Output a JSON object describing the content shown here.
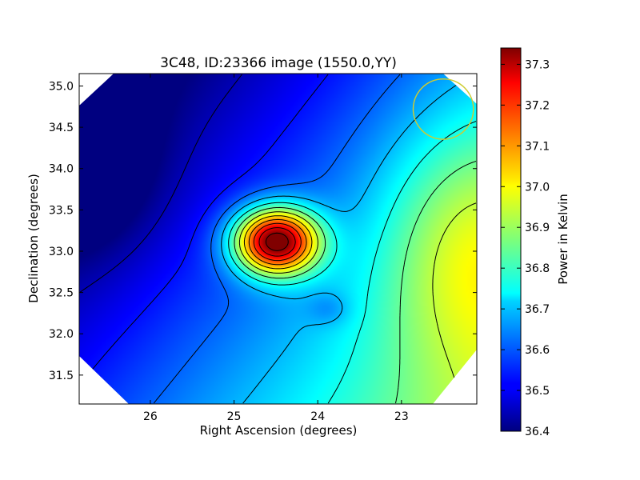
{
  "chart_data": {
    "type": "heatmap",
    "title": "3C48, ID:23366 image (1550.0,YY)",
    "xlabel": "Right Ascension (degrees)",
    "ylabel": "Declination (degrees)",
    "xlim": [
      26.85,
      22.1
    ],
    "ylim": [
      31.15,
      35.15
    ],
    "x_inverted": true,
    "xticks": [
      26,
      25,
      24,
      23
    ],
    "xtick_labels": [
      "26",
      "25",
      "24",
      "23"
    ],
    "yticks": [
      31.5,
      32.0,
      32.5,
      33.0,
      33.5,
      34.0,
      34.5,
      35.0
    ],
    "ytick_labels": [
      "31.5",
      "32.0",
      "32.5",
      "33.0",
      "33.5",
      "34.0",
      "34.5",
      "35.0"
    ],
    "colorbar": {
      "label": "Power in Kelvin",
      "range": [
        36.4,
        37.34
      ],
      "ticks": [
        36.4,
        36.5,
        36.6,
        36.7,
        36.8,
        36.9,
        37.0,
        37.1,
        37.2,
        37.3
      ],
      "tick_labels": [
        "36.4",
        "36.5",
        "36.6",
        "36.7",
        "36.8",
        "36.9",
        "37.0",
        "37.1",
        "37.2",
        "37.3"
      ],
      "colormap": "jet"
    },
    "field_sources": [
      {
        "ra": 24.5,
        "dec": 33.12,
        "amplitude": 0.78,
        "sigma_ra": 0.35,
        "sigma_dec": 0.28
      },
      {
        "ra": 23.86,
        "dec": 32.3,
        "amplitude": -0.06,
        "sigma_ra": 0.18,
        "sigma_dec": 0.14
      },
      {
        "ra": 22.2,
        "dec": 33.05,
        "amplitude": 0.2,
        "sigma_ra": 0.75,
        "sigma_dec": 1.1
      },
      {
        "ra": 26.7,
        "dec": 33.9,
        "amplitude": -0.1,
        "sigma_ra": 0.6,
        "sigma_dec": 0.7
      }
    ],
    "background_model": {
      "base": 36.6,
      "ra_slope": -0.075,
      "dec_slope": -0.06,
      "ra_ref": 24.5,
      "dec_ref": 33.15
    },
    "contour_levels": [
      36.45,
      36.53,
      36.61,
      36.69,
      36.77,
      36.85,
      36.93,
      37.01,
      37.09,
      37.17,
      37.25,
      37.33
    ],
    "beam_marker": {
      "ra": 22.5,
      "dec": 34.72,
      "radius_deg": 0.36,
      "color": "#cccc33"
    },
    "colors": {
      "beam_circle": "#cccc33",
      "contours": "#000000"
    }
  }
}
